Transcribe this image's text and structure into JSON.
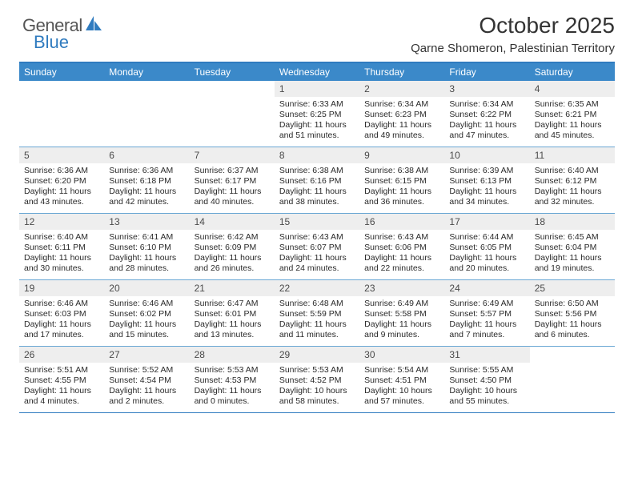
{
  "logo": {
    "word1": "General",
    "word2": "Blue"
  },
  "colors": {
    "brand_blue": "#3b89c9",
    "border_blue": "#2f7bbf",
    "row_divider": "#6aa7d4",
    "daynum_bg": "#eeeeee",
    "text": "#333333",
    "bg": "#ffffff"
  },
  "header": {
    "month": "October 2025",
    "location": "Qarne Shomeron, Palestinian Territory"
  },
  "dow": [
    "Sunday",
    "Monday",
    "Tuesday",
    "Wednesday",
    "Thursday",
    "Friday",
    "Saturday"
  ],
  "weeks": [
    [
      null,
      null,
      null,
      {
        "n": "1",
        "sunrise": "6:33 AM",
        "sunset": "6:25 PM",
        "dl": "11 hours and 51 minutes."
      },
      {
        "n": "2",
        "sunrise": "6:34 AM",
        "sunset": "6:23 PM",
        "dl": "11 hours and 49 minutes."
      },
      {
        "n": "3",
        "sunrise": "6:34 AM",
        "sunset": "6:22 PM",
        "dl": "11 hours and 47 minutes."
      },
      {
        "n": "4",
        "sunrise": "6:35 AM",
        "sunset": "6:21 PM",
        "dl": "11 hours and 45 minutes."
      }
    ],
    [
      {
        "n": "5",
        "sunrise": "6:36 AM",
        "sunset": "6:20 PM",
        "dl": "11 hours and 43 minutes."
      },
      {
        "n": "6",
        "sunrise": "6:36 AM",
        "sunset": "6:18 PM",
        "dl": "11 hours and 42 minutes."
      },
      {
        "n": "7",
        "sunrise": "6:37 AM",
        "sunset": "6:17 PM",
        "dl": "11 hours and 40 minutes."
      },
      {
        "n": "8",
        "sunrise": "6:38 AM",
        "sunset": "6:16 PM",
        "dl": "11 hours and 38 minutes."
      },
      {
        "n": "9",
        "sunrise": "6:38 AM",
        "sunset": "6:15 PM",
        "dl": "11 hours and 36 minutes."
      },
      {
        "n": "10",
        "sunrise": "6:39 AM",
        "sunset": "6:13 PM",
        "dl": "11 hours and 34 minutes."
      },
      {
        "n": "11",
        "sunrise": "6:40 AM",
        "sunset": "6:12 PM",
        "dl": "11 hours and 32 minutes."
      }
    ],
    [
      {
        "n": "12",
        "sunrise": "6:40 AM",
        "sunset": "6:11 PM",
        "dl": "11 hours and 30 minutes."
      },
      {
        "n": "13",
        "sunrise": "6:41 AM",
        "sunset": "6:10 PM",
        "dl": "11 hours and 28 minutes."
      },
      {
        "n": "14",
        "sunrise": "6:42 AM",
        "sunset": "6:09 PM",
        "dl": "11 hours and 26 minutes."
      },
      {
        "n": "15",
        "sunrise": "6:43 AM",
        "sunset": "6:07 PM",
        "dl": "11 hours and 24 minutes."
      },
      {
        "n": "16",
        "sunrise": "6:43 AM",
        "sunset": "6:06 PM",
        "dl": "11 hours and 22 minutes."
      },
      {
        "n": "17",
        "sunrise": "6:44 AM",
        "sunset": "6:05 PM",
        "dl": "11 hours and 20 minutes."
      },
      {
        "n": "18",
        "sunrise": "6:45 AM",
        "sunset": "6:04 PM",
        "dl": "11 hours and 19 minutes."
      }
    ],
    [
      {
        "n": "19",
        "sunrise": "6:46 AM",
        "sunset": "6:03 PM",
        "dl": "11 hours and 17 minutes."
      },
      {
        "n": "20",
        "sunrise": "6:46 AM",
        "sunset": "6:02 PM",
        "dl": "11 hours and 15 minutes."
      },
      {
        "n": "21",
        "sunrise": "6:47 AM",
        "sunset": "6:01 PM",
        "dl": "11 hours and 13 minutes."
      },
      {
        "n": "22",
        "sunrise": "6:48 AM",
        "sunset": "5:59 PM",
        "dl": "11 hours and 11 minutes."
      },
      {
        "n": "23",
        "sunrise": "6:49 AM",
        "sunset": "5:58 PM",
        "dl": "11 hours and 9 minutes."
      },
      {
        "n": "24",
        "sunrise": "6:49 AM",
        "sunset": "5:57 PM",
        "dl": "11 hours and 7 minutes."
      },
      {
        "n": "25",
        "sunrise": "6:50 AM",
        "sunset": "5:56 PM",
        "dl": "11 hours and 6 minutes."
      }
    ],
    [
      {
        "n": "26",
        "sunrise": "5:51 AM",
        "sunset": "4:55 PM",
        "dl": "11 hours and 4 minutes."
      },
      {
        "n": "27",
        "sunrise": "5:52 AM",
        "sunset": "4:54 PM",
        "dl": "11 hours and 2 minutes."
      },
      {
        "n": "28",
        "sunrise": "5:53 AM",
        "sunset": "4:53 PM",
        "dl": "11 hours and 0 minutes."
      },
      {
        "n": "29",
        "sunrise": "5:53 AM",
        "sunset": "4:52 PM",
        "dl": "10 hours and 58 minutes."
      },
      {
        "n": "30",
        "sunrise": "5:54 AM",
        "sunset": "4:51 PM",
        "dl": "10 hours and 57 minutes."
      },
      {
        "n": "31",
        "sunrise": "5:55 AM",
        "sunset": "4:50 PM",
        "dl": "10 hours and 55 minutes."
      },
      null
    ]
  ],
  "labels": {
    "sunrise": "Sunrise:",
    "sunset": "Sunset:",
    "daylight": "Daylight:"
  }
}
